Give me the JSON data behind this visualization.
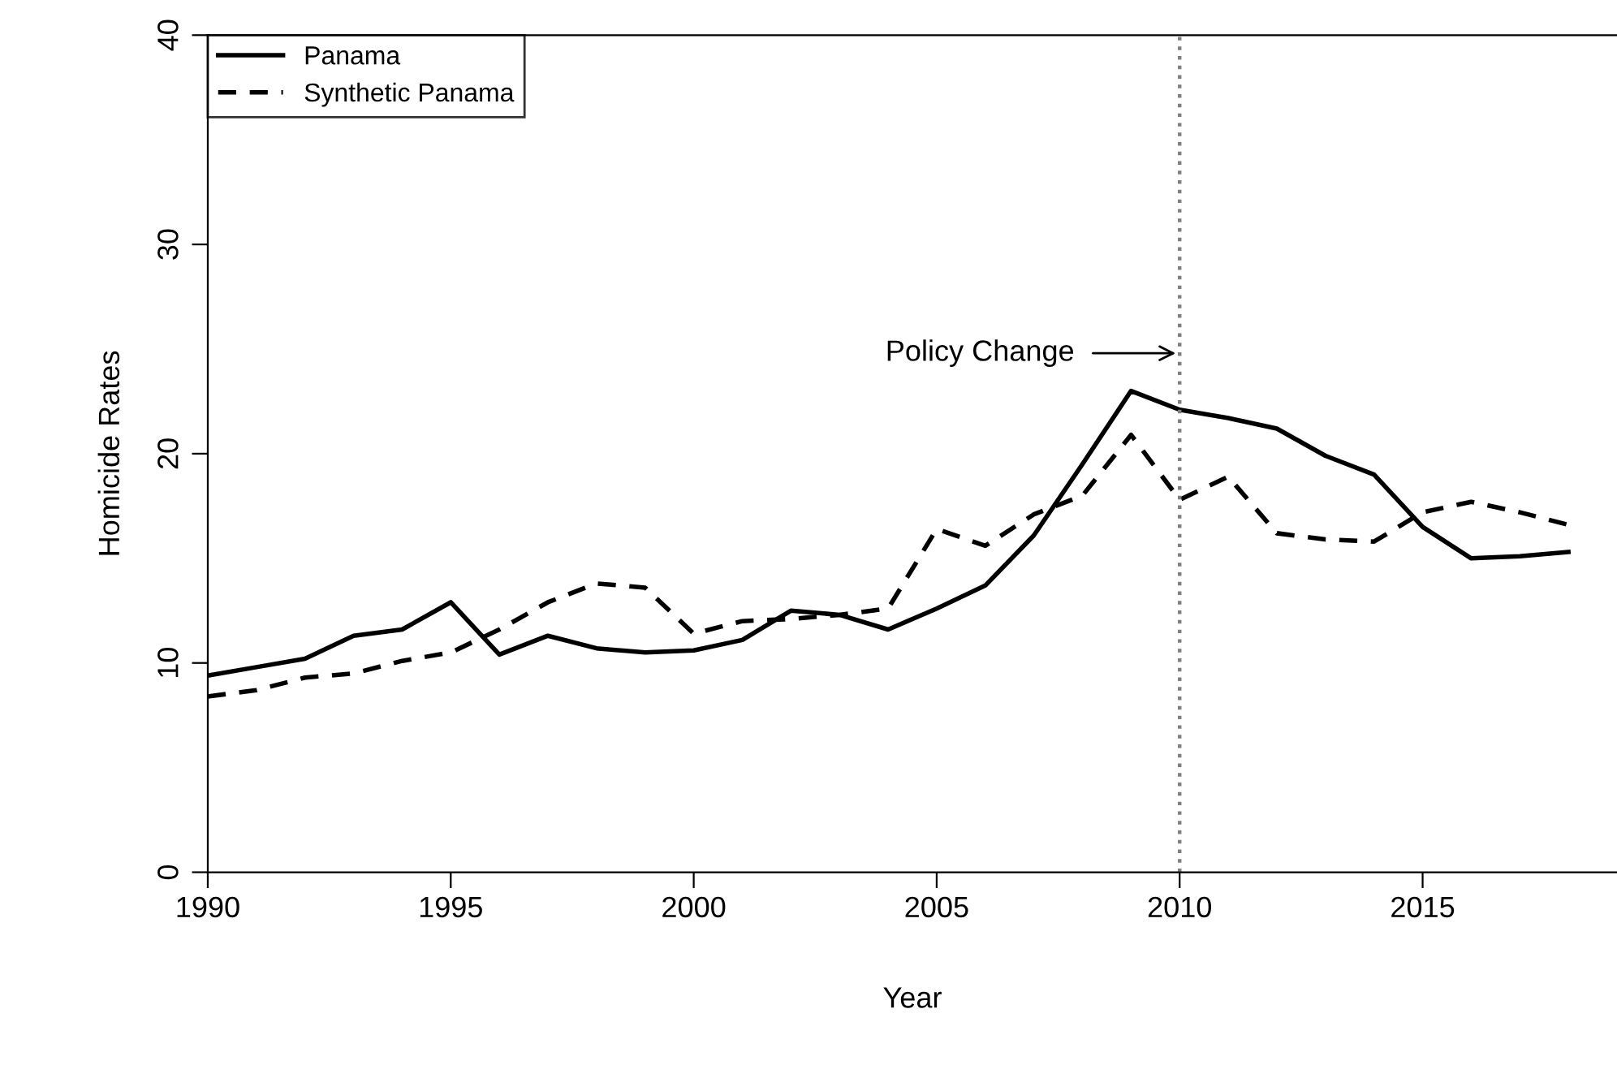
{
  "chart_data": {
    "type": "line",
    "xlabel": "Year",
    "ylabel": "Homicide Rates",
    "x": [
      1990,
      1991,
      1992,
      1993,
      1994,
      1995,
      1996,
      1997,
      1998,
      1999,
      2000,
      2001,
      2002,
      2003,
      2004,
      2005,
      2006,
      2007,
      2008,
      2009,
      2010,
      2011,
      2012,
      2013,
      2014,
      2015,
      2016,
      2017,
      2018
    ],
    "series": [
      {
        "name": "Panama",
        "color": "#000000",
        "line_style": "solid",
        "values": [
          9.4,
          9.8,
          10.2,
          11.3,
          11.6,
          12.9,
          10.4,
          11.3,
          10.7,
          10.5,
          10.6,
          11.1,
          12.5,
          12.3,
          11.6,
          12.6,
          13.7,
          16.1,
          19.5,
          23.0,
          22.1,
          21.7,
          21.2,
          19.9,
          19.0,
          16.5,
          15.0,
          15.1,
          15.3
        ]
      },
      {
        "name": "Synthetic Panama",
        "color": "#000000",
        "line_style": "dashed",
        "values": [
          8.4,
          8.7,
          9.3,
          9.5,
          10.1,
          10.5,
          11.6,
          12.9,
          13.8,
          13.6,
          11.4,
          12.0,
          12.1,
          12.3,
          12.6,
          16.4,
          15.6,
          17.1,
          18.0,
          20.9,
          17.8,
          18.9,
          16.2,
          15.9,
          15.8,
          17.2,
          17.7,
          17.2,
          16.6
        ]
      }
    ],
    "xlim": [
      1990,
      2019
    ],
    "ylim": [
      0,
      40
    ],
    "xticks": [
      1990,
      1995,
      2000,
      2005,
      2010,
      2015
    ],
    "yticks": [
      0,
      10,
      20,
      30,
      40
    ],
    "ref_lines": [
      {
        "axis": "x",
        "value": 2010,
        "color": "#808080",
        "line_style": "dotted"
      }
    ],
    "annotations": [
      "Policy Change"
    ],
    "legend": "top left",
    "grid": false
  }
}
